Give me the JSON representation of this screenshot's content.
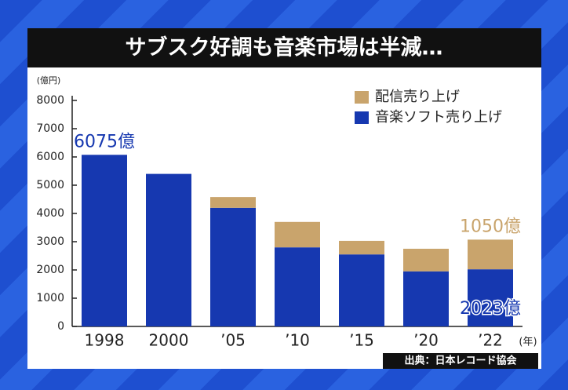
{
  "chart_data": {
    "type": "stacked_bar",
    "title": "サブスク好調も音楽市場は半減…",
    "y_unit": "(億円)",
    "x_unit": "(年)",
    "source": "出典：日本レコード協会",
    "categories": [
      "1998",
      "2000",
      "’05",
      "’10",
      "’15",
      "’20",
      "’22"
    ],
    "series": [
      {
        "name": "音楽ソフト売り上げ",
        "color": "#1638b0",
        "values": [
          6075,
          5400,
          4200,
          2800,
          2550,
          1950,
          2023
        ],
        "value_labels": [
          "6075億",
          null,
          null,
          null,
          null,
          null,
          "2023億"
        ]
      },
      {
        "name": "配信売り上げ",
        "color": "#c9a46c",
        "values": [
          null,
          null,
          380,
          900,
          480,
          800,
          1050
        ],
        "value_labels": [
          null,
          null,
          null,
          null,
          null,
          null,
          "1050億"
        ]
      }
    ],
    "ylim": [
      0,
      8000
    ],
    "yticks": [
      0,
      1000,
      2000,
      3000,
      4000,
      5000,
      6000,
      7000,
      8000
    ]
  }
}
